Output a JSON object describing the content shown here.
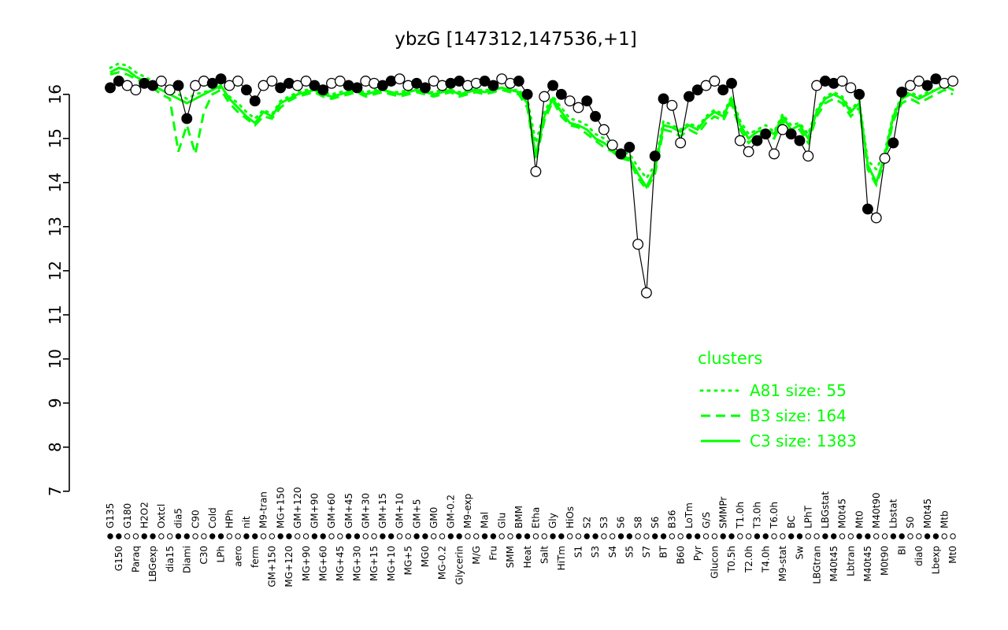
{
  "figure": {
    "title": "ybzG [147312,147536,+1]"
  },
  "colors": {
    "accent": "#00ff00",
    "foreground": "#000000",
    "background": "#ffffff"
  },
  "chart_data": {
    "type": "line",
    "title": "ybzG [147312,147536,+1]",
    "xlabel": "",
    "ylabel": "",
    "ylim": [
      7,
      16.8
    ],
    "yticks": [
      7,
      8,
      9,
      10,
      11,
      12,
      13,
      14,
      15,
      16
    ],
    "grid": false,
    "legend": {
      "title": "clusters",
      "position": "right-center",
      "color": "#00ff00",
      "entries": [
        {
          "label": "A81 size: 55",
          "style": "dotted"
        },
        {
          "label": "B3 size: 164",
          "style": "dashed"
        },
        {
          "label": "C3 size: 1383",
          "style": "solid"
        }
      ]
    },
    "marker_pattern": "ffoo",
    "categories": [
      "G135",
      "G150",
      "G180",
      "Paraq",
      "H2O2",
      "LBGexp",
      "Oxtcl",
      "dia15",
      "dia5",
      "Diami",
      "C90",
      "C30",
      "Cold",
      "LPh",
      "HPh",
      "aero",
      "nit",
      "ferm",
      "M9-tran",
      "GM+150",
      "MG+150",
      "MG+120",
      "GM+120",
      "MG+90",
      "GM+90",
      "MG+60",
      "GM+60",
      "MG+45",
      "GM+45",
      "MG+30",
      "GM+30",
      "MG+15",
      "GM+15",
      "MG+10",
      "GM+10",
      "MG+5",
      "GM+5",
      "MG0",
      "GM0",
      "MG-0.2",
      "GM-0.2",
      "Glycerin",
      "M9-exp",
      "M/G",
      "Mal",
      "Fru",
      "Glu",
      "SMM",
      "BMM",
      "Heat",
      "Etha",
      "Salt",
      "Gly",
      "HiTm",
      "HiOs",
      "S1",
      "S2",
      "S3",
      "S3",
      "S4",
      "S6",
      "S5",
      "S8",
      "S7",
      "S6",
      "BT",
      "B36",
      "B60",
      "LoTm",
      "Pyr",
      "G/S",
      "Glucon",
      "SMMPr",
      "T0.5h",
      "T1.0h",
      "T2.0h",
      "T3.0h",
      "T4.0h",
      "T6.0h",
      "M9-stat",
      "BC",
      "Sw",
      "LPhT",
      "LBGtran",
      "LBGstat",
      "M40t45",
      "M0t45",
      "Lbtran",
      "Mt0",
      "M40t45",
      "M40t90",
      "M0t90",
      "Lbstat",
      "BI",
      "S0",
      "dia0",
      "M0t45",
      "Lbexp",
      "Mtb",
      "Mt0"
    ],
    "series": [
      {
        "name": "ybzG",
        "role": "gene-profile",
        "color": "#000000",
        "style": "solid-markers",
        "values": [
          16.15,
          16.3,
          16.2,
          16.1,
          16.25,
          16.2,
          16.3,
          16.1,
          16.2,
          15.45,
          16.2,
          16.3,
          16.25,
          16.35,
          16.2,
          16.3,
          16.1,
          15.85,
          16.2,
          16.3,
          16.15,
          16.25,
          16.2,
          16.3,
          16.2,
          16.1,
          16.25,
          16.3,
          16.2,
          16.15,
          16.3,
          16.25,
          16.2,
          16.3,
          16.35,
          16.2,
          16.25,
          16.15,
          16.3,
          16.2,
          16.25,
          16.3,
          16.2,
          16.25,
          16.3,
          16.2,
          16.35,
          16.25,
          16.3,
          16.0,
          14.25,
          15.95,
          16.2,
          16.0,
          15.85,
          15.7,
          15.85,
          15.5,
          15.2,
          14.85,
          14.65,
          14.8,
          12.6,
          11.5,
          14.6,
          15.9,
          15.75,
          14.9,
          15.95,
          16.1,
          16.2,
          16.3,
          16.1,
          16.25,
          14.95,
          14.7,
          14.95,
          15.1,
          14.65,
          15.2,
          15.1,
          14.95,
          14.6,
          16.2,
          16.3,
          16.25,
          16.3,
          16.15,
          16.0,
          13.4,
          13.2,
          14.55,
          14.9,
          16.05,
          16.2,
          16.3,
          16.2,
          16.35,
          16.25,
          16.3
        ]
      },
      {
        "name": "A81 size: 55",
        "role": "cluster-mean",
        "color": "#00ff00",
        "style": "dotted",
        "values": [
          16.6,
          16.7,
          16.65,
          16.5,
          16.4,
          16.3,
          16.2,
          16.1,
          16.0,
          15.9,
          16.0,
          16.05,
          16.1,
          16.15,
          15.95,
          15.8,
          15.6,
          15.45,
          15.65,
          15.55,
          15.85,
          15.95,
          16.05,
          16.1,
          16.1,
          16.05,
          16.0,
          16.05,
          16.1,
          16.1,
          16.05,
          16.1,
          16.1,
          16.05,
          16.05,
          16.1,
          16.1,
          16.05,
          16.05,
          16.1,
          16.1,
          16.05,
          16.1,
          16.1,
          16.1,
          16.1,
          16.15,
          16.1,
          16.1,
          15.9,
          14.9,
          15.6,
          15.95,
          15.7,
          15.45,
          15.4,
          15.3,
          15.1,
          15.0,
          14.85,
          14.7,
          14.65,
          14.35,
          14.1,
          14.4,
          15.4,
          15.3,
          15.2,
          15.35,
          15.25,
          15.5,
          15.65,
          15.55,
          15.95,
          15.4,
          15.1,
          15.2,
          15.3,
          15.15,
          15.55,
          15.3,
          15.35,
          15.1,
          15.65,
          15.95,
          16.05,
          15.95,
          15.65,
          15.85,
          14.5,
          14.3,
          14.7,
          15.55,
          15.95,
          16.05,
          15.95,
          16.05,
          16.1,
          16.2,
          16.1
        ]
      },
      {
        "name": "B3 size: 164",
        "role": "cluster-mean",
        "color": "#00ff00",
        "style": "dashed",
        "values": [
          16.45,
          16.5,
          16.45,
          16.35,
          16.25,
          16.15,
          16.0,
          15.9,
          14.7,
          15.3,
          14.65,
          15.6,
          16.0,
          16.1,
          15.8,
          15.6,
          15.45,
          15.3,
          15.5,
          15.45,
          15.7,
          15.85,
          15.95,
          16.0,
          16.05,
          15.95,
          15.9,
          15.95,
          16.0,
          16.05,
          15.95,
          16.0,
          16.05,
          16.0,
          15.95,
          16.0,
          16.05,
          16.0,
          15.95,
          16.0,
          16.05,
          15.95,
          16.0,
          16.05,
          16.0,
          16.05,
          16.1,
          16.05,
          16.0,
          15.7,
          14.5,
          15.4,
          15.85,
          15.5,
          15.3,
          15.25,
          15.1,
          14.95,
          14.8,
          14.7,
          14.55,
          14.5,
          14.1,
          13.85,
          14.2,
          15.2,
          15.15,
          15.05,
          15.2,
          15.1,
          15.35,
          15.5,
          15.4,
          15.8,
          15.2,
          14.9,
          15.05,
          15.1,
          15.0,
          15.4,
          15.1,
          15.2,
          14.9,
          15.5,
          15.8,
          15.9,
          15.8,
          15.5,
          15.7,
          14.3,
          13.95,
          14.5,
          15.4,
          15.8,
          15.9,
          15.8,
          15.9,
          16.0,
          16.1,
          16.0
        ]
      },
      {
        "name": "C3 size: 1383",
        "role": "cluster-mean",
        "color": "#00ff00",
        "style": "solid",
        "values": [
          16.5,
          16.6,
          16.55,
          16.4,
          16.3,
          16.2,
          16.1,
          16.0,
          15.9,
          15.8,
          15.9,
          16.0,
          16.1,
          16.2,
          15.9,
          15.7,
          15.5,
          15.35,
          15.6,
          15.5,
          15.8,
          15.9,
          16.0,
          16.05,
          16.1,
          16.0,
          15.95,
          16.0,
          16.05,
          16.1,
          16.0,
          16.05,
          16.1,
          16.05,
          16.0,
          16.05,
          16.1,
          16.05,
          16.0,
          16.05,
          16.1,
          16.0,
          16.05,
          16.1,
          16.05,
          16.1,
          16.15,
          16.1,
          16.05,
          15.8,
          14.6,
          15.5,
          15.9,
          15.6,
          15.35,
          15.3,
          15.2,
          15.0,
          14.9,
          14.75,
          14.6,
          14.55,
          14.2,
          13.9,
          14.3,
          15.3,
          15.25,
          15.15,
          15.3,
          15.2,
          15.45,
          15.6,
          15.5,
          15.9,
          15.3,
          15.0,
          15.15,
          15.2,
          15.1,
          15.5,
          15.2,
          15.3,
          15.0,
          15.6,
          15.9,
          16.0,
          15.9,
          15.6,
          15.8,
          14.4,
          14.0,
          14.6,
          15.5,
          15.9,
          16.0,
          15.9,
          16.0,
          16.1,
          16.2,
          16.1
        ]
      }
    ]
  }
}
